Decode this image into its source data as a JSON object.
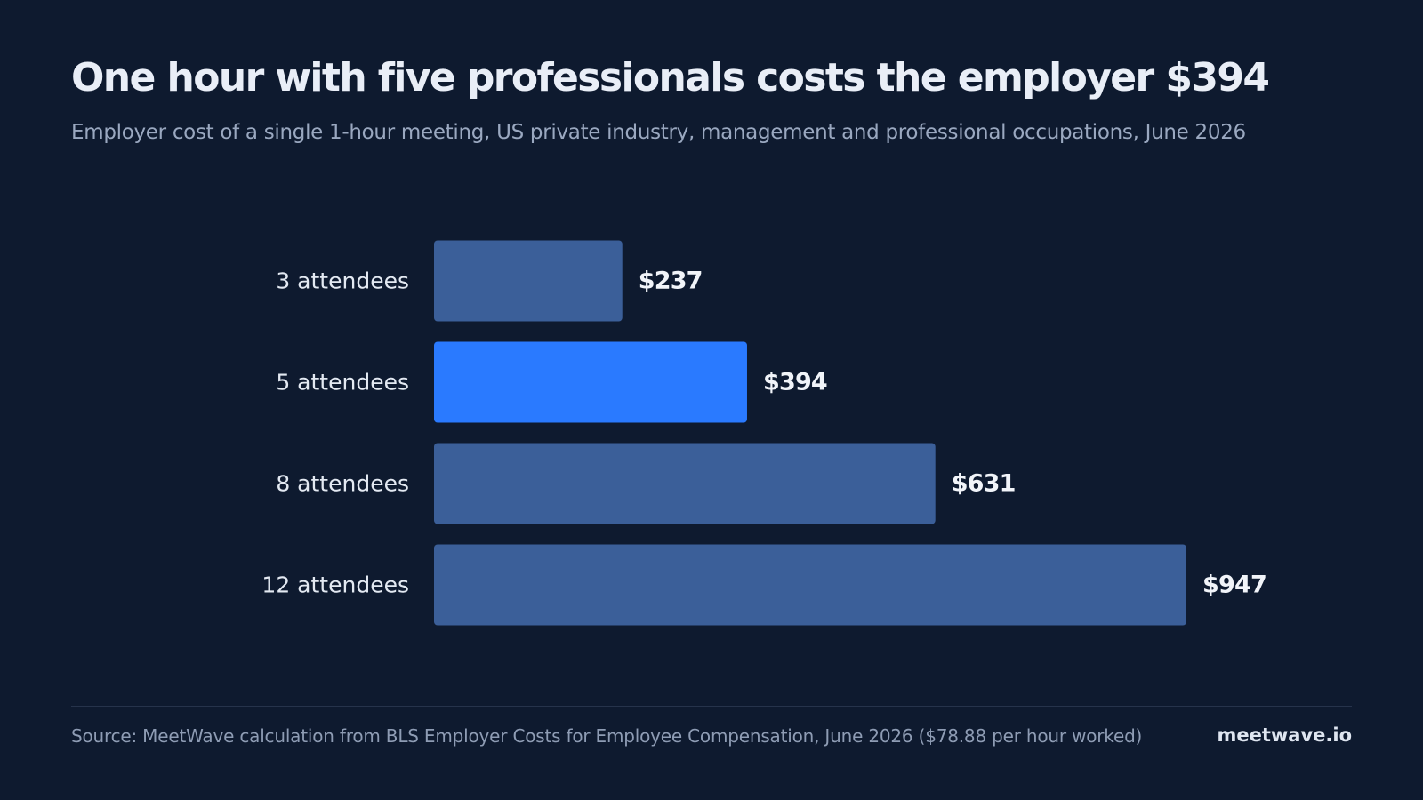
{
  "header": {
    "title": "One hour with five professionals costs the employer $394",
    "subtitle": "Employer cost of a single 1-hour meeting, US private industry, management and professional occupations, June 2026"
  },
  "chart_data": {
    "type": "bar",
    "orientation": "horizontal",
    "title": "One hour with five professionals costs the employer $394",
    "subtitle": "Employer cost of a single 1-hour meeting, US private industry, management and professional occupations, June 2026",
    "categories": [
      "3 attendees",
      "5 attendees",
      "8 attendees",
      "12 attendees"
    ],
    "values": [
      237,
      394,
      631,
      947
    ],
    "value_labels": [
      "$237",
      "$394",
      "$631",
      "$947"
    ],
    "highlight_index": 1,
    "xlabel": "",
    "ylabel": "",
    "xlim": [
      0,
      947
    ],
    "grid": false,
    "legend": "none",
    "colors": {
      "default": "#3b5f99",
      "highlight": "#2a7aff"
    }
  },
  "footer": {
    "source": "Source: MeetWave calculation from BLS Employer Costs for Employee Compensation, June 2026 ($78.88 per hour worked)",
    "brand": "meetwave.io"
  },
  "theme": {
    "background": "#0e1a2f"
  }
}
